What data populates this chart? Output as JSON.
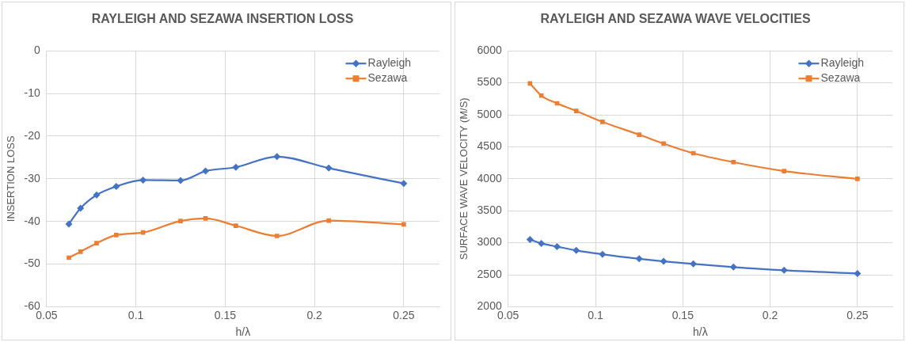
{
  "chart_data": [
    {
      "type": "line",
      "title": "RAYLEIGH AND SEZAWA INSERTION LOSS",
      "xlabel": "h/λ",
      "ylabel": "INSERTION LOSS",
      "x": [
        0.0625,
        0.069,
        0.078,
        0.089,
        0.104,
        0.125,
        0.139,
        0.156,
        0.179,
        0.208,
        0.25
      ],
      "series": [
        {
          "name": "Rayleigh",
          "color": "#4472c4",
          "marker": "diamond",
          "values": [
            -40.6,
            -36.9,
            -33.8,
            -31.8,
            -30.3,
            -30.4,
            -28.2,
            -27.3,
            -24.8,
            -27.5,
            -31.1
          ]
        },
        {
          "name": "Sezawa",
          "color": "#ed7d31",
          "marker": "square",
          "values": [
            -48.5,
            -47.1,
            -45.1,
            -43.2,
            -42.6,
            -39.9,
            -39.3,
            -41.0,
            -43.4,
            -39.8,
            -40.7
          ]
        }
      ],
      "xlim": [
        0.05,
        0.27
      ],
      "xticks": [
        0.05,
        0.1,
        0.15,
        0.2,
        0.25
      ],
      "ylim": [
        -60,
        0
      ],
      "yticks": [
        -60,
        -50,
        -40,
        -30,
        -20,
        -10,
        0
      ],
      "grid": true,
      "legend": "top right"
    },
    {
      "type": "line",
      "title": "RAYLEIGH AND SEZAWA WAVE VELOCITIES",
      "xlabel": "h/λ",
      "ylabel": "SURFACE WAVE VELOCITY (M/S)",
      "x": [
        0.0625,
        0.069,
        0.078,
        0.089,
        0.104,
        0.125,
        0.139,
        0.156,
        0.179,
        0.208,
        0.25
      ],
      "series": [
        {
          "name": "Rayleigh",
          "color": "#4472c4",
          "marker": "diamond",
          "values": [
            3050,
            2990,
            2940,
            2880,
            2820,
            2750,
            2710,
            2670,
            2620,
            2570,
            2520
          ]
        },
        {
          "name": "Sezawa",
          "color": "#ed7d31",
          "marker": "square",
          "values": [
            5490,
            5300,
            5180,
            5060,
            4890,
            4690,
            4550,
            4400,
            4260,
            4120,
            4000
          ]
        }
      ],
      "xlim": [
        0.05,
        0.27
      ],
      "xticks": [
        0.05,
        0.1,
        0.15,
        0.2,
        0.25
      ],
      "ylim": [
        2000,
        6000
      ],
      "yticks": [
        2000,
        2500,
        3000,
        3500,
        4000,
        4500,
        5000,
        5500,
        6000
      ],
      "grid": true,
      "legend": "top right"
    }
  ]
}
